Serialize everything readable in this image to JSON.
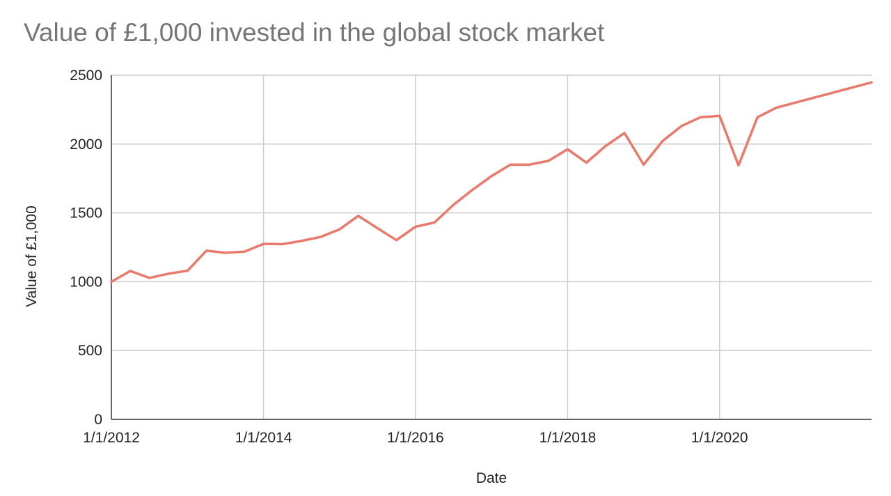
{
  "chart_data": {
    "type": "line",
    "title": "Value of £1,000 invested in the global stock market",
    "xlabel": "Date",
    "ylabel": "Value of £1,000",
    "xlim": [
      "2012-01-01",
      "2021-12-31"
    ],
    "ylim": [
      0,
      2500
    ],
    "yticks": [
      0,
      500,
      1000,
      1500,
      2000,
      2500
    ],
    "xticks": [
      {
        "date": "2012-01-01",
        "label": "1/1/2012"
      },
      {
        "date": "2014-01-01",
        "label": "1/1/2014"
      },
      {
        "date": "2016-01-01",
        "label": "1/1/2016"
      },
      {
        "date": "2018-01-01",
        "label": "1/1/2018"
      },
      {
        "date": "2020-01-01",
        "label": "1/1/2020"
      }
    ],
    "grid": true,
    "line_color": "#e8796b",
    "series": [
      {
        "x": [
          "2012-01-01",
          "2012-04-01",
          "2012-07-01",
          "2012-10-01",
          "2013-01-01",
          "2013-04-01",
          "2013-07-01",
          "2013-10-01",
          "2014-01-01",
          "2014-04-01",
          "2014-07-01",
          "2014-10-01",
          "2015-01-01",
          "2015-04-01",
          "2015-07-01",
          "2015-10-01",
          "2016-01-01",
          "2016-04-01",
          "2016-07-01",
          "2016-10-01",
          "2017-01-01",
          "2017-04-01",
          "2017-07-01",
          "2017-10-01",
          "2018-01-01",
          "2018-04-01",
          "2018-07-01",
          "2018-10-01",
          "2019-01-01",
          "2019-04-01",
          "2019-07-01",
          "2019-10-01",
          "2020-01-01",
          "2020-04-01",
          "2020-07-01",
          "2020-10-01",
          "2021-12-31"
        ],
        "values": [
          1000,
          1078,
          1028,
          1058,
          1080,
          1225,
          1210,
          1218,
          1275,
          1273,
          1296,
          1325,
          1380,
          1478,
          1390,
          1302,
          1400,
          1430,
          1558,
          1668,
          1768,
          1850,
          1850,
          1878,
          1962,
          1865,
          1985,
          2080,
          1850,
          2020,
          2130,
          2195,
          2205,
          1845,
          2195,
          2265,
          2448
        ]
      }
    ]
  }
}
